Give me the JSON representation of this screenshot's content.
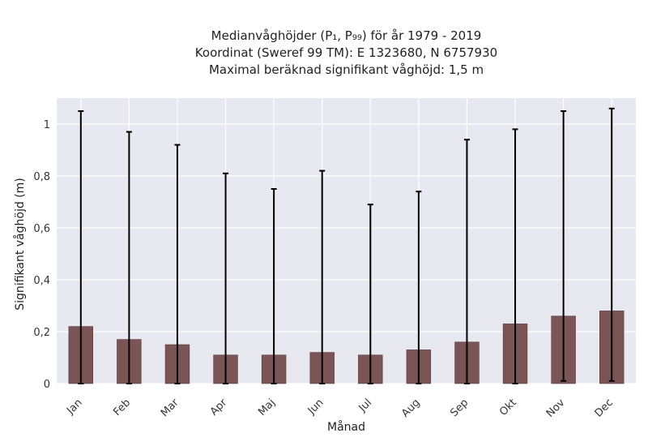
{
  "chart_data": {
    "type": "bar",
    "title_lines": [
      "Medianvåghöjder (P₁, P₉₉) för år 1979 - 2019",
      "Koordinat (Sweref 99 TM): E 1323680, N 6757930",
      "Maximal beräknad signifikant våghöjd: 1,5 m"
    ],
    "xlabel": "Månad",
    "ylabel": "Signifikant våghöjd (m)",
    "categories": [
      "Jan",
      "Feb",
      "Mar",
      "Apr",
      "Maj",
      "Jun",
      "Jul",
      "Aug",
      "Sep",
      "Okt",
      "Nov",
      "Dec"
    ],
    "values": [
      0.22,
      0.17,
      0.15,
      0.11,
      0.11,
      0.12,
      0.11,
      0.13,
      0.16,
      0.23,
      0.26,
      0.28
    ],
    "p1": [
      0.0,
      0.0,
      0.0,
      0.0,
      0.0,
      0.0,
      0.0,
      0.0,
      0.0,
      0.0,
      0.01,
      0.01
    ],
    "p99": [
      1.05,
      0.97,
      0.92,
      0.81,
      0.75,
      0.82,
      0.69,
      0.74,
      0.94,
      0.98,
      1.05,
      1.06
    ],
    "ylim": [
      0,
      1.1
    ],
    "yticks": [
      0,
      0.2,
      0.4,
      0.6,
      0.8,
      1.0
    ],
    "ytick_labels": [
      "0",
      "0,2",
      "0,4",
      "0,6",
      "0,8",
      "1"
    ],
    "grid": true,
    "colors": {
      "bar": "#7b5456",
      "errorbar": "#000000",
      "plot_bg": "#e8e8f0",
      "grid": "#ffffff"
    }
  }
}
